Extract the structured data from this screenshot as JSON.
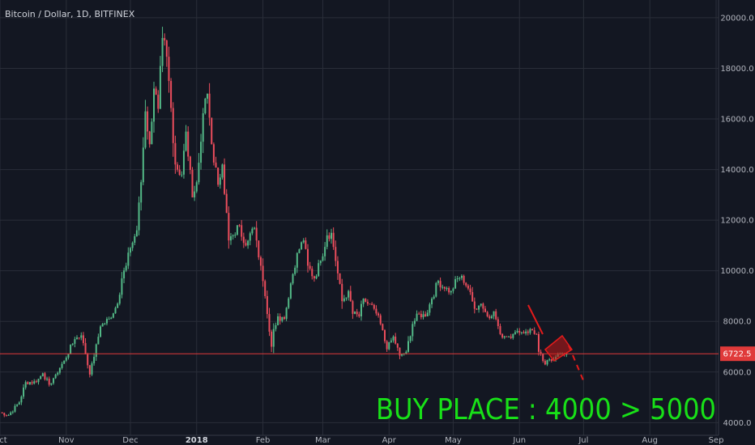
{
  "header": {
    "title": "Bitcoin / Dollar, 1D, BITFINEX"
  },
  "chart_data": {
    "type": "candlestick",
    "symbol": "Bitcoin / Dollar",
    "interval": "1D",
    "exchange": "BITFINEX",
    "ylim": [
      3500,
      20700
    ],
    "y_ticks": [
      "20000.0",
      "18000.0",
      "16000.0",
      "14000.0",
      "12000.0",
      "10000.0",
      "8000.0",
      "6000.0",
      "4000.0"
    ],
    "y_tick_values": [
      20000,
      18000,
      16000,
      14000,
      12000,
      10000,
      8000,
      6000,
      4000
    ],
    "x_ticks": [
      "Oct",
      "Nov",
      "Dec",
      "2018",
      "Feb",
      "Mar",
      "Apr",
      "May",
      "Jun",
      "Jul",
      "Aug",
      "Sep"
    ],
    "x_tick_dates": [
      "2017-10-01",
      "2017-11-01",
      "2017-12-01",
      "2018-01-01",
      "2018-02-01",
      "2018-03-01",
      "2018-04-01",
      "2018-05-01",
      "2018-06-01",
      "2018-07-01",
      "2018-08-01",
      "2018-09-01"
    ],
    "x_range": [
      "2017-10-01",
      "2018-09-01"
    ],
    "current_price": "6722.5",
    "current_price_value": 6722.5,
    "annotation": "BUY PLACE : 4000 > 5000",
    "colors": {
      "background": "#131722",
      "grid": "#2a2e39",
      "up": "#53b987",
      "down": "#eb4d5c",
      "price_line": "#e03a3a",
      "annotation": "#18e018",
      "drawing": "#e31b1b"
    },
    "grid": true,
    "close_anchors": [
      [
        "2017-10-01",
        4400
      ],
      [
        "2017-10-05",
        4300
      ],
      [
        "2017-10-10",
        4800
      ],
      [
        "2017-10-13",
        5600
      ],
      [
        "2017-10-18",
        5600
      ],
      [
        "2017-10-21",
        5950
      ],
      [
        "2017-10-24",
        5500
      ],
      [
        "2017-10-27",
        5900
      ],
      [
        "2017-10-31",
        6450
      ],
      [
        "2017-11-05",
        7300
      ],
      [
        "2017-11-08",
        7450
      ],
      [
        "2017-11-10",
        6700
      ],
      [
        "2017-11-12",
        5900
      ],
      [
        "2017-11-14",
        6600
      ],
      [
        "2017-11-17",
        7800
      ],
      [
        "2017-11-21",
        8100
      ],
      [
        "2017-11-25",
        8700
      ],
      [
        "2017-11-27",
        9700
      ],
      [
        "2017-11-29",
        10200
      ],
      [
        "2017-12-01",
        10900
      ],
      [
        "2017-12-04",
        11600
      ],
      [
        "2017-12-06",
        13500
      ],
      [
        "2017-12-08",
        16300
      ],
      [
        "2017-12-10",
        15000
      ],
      [
        "2017-12-12",
        17200
      ],
      [
        "2017-12-14",
        16400
      ],
      [
        "2017-12-16",
        19200
      ],
      [
        "2017-12-17",
        19100
      ],
      [
        "2017-12-19",
        17500
      ],
      [
        "2017-12-22",
        14200
      ],
      [
        "2017-12-25",
        13800
      ],
      [
        "2017-12-27",
        15500
      ],
      [
        "2017-12-30",
        12900
      ],
      [
        "2018-01-01",
        13500
      ],
      [
        "2018-01-03",
        15100
      ],
      [
        "2018-01-05",
        16800
      ],
      [
        "2018-01-06",
        17000
      ],
      [
        "2018-01-08",
        15000
      ],
      [
        "2018-01-11",
        13400
      ],
      [
        "2018-01-13",
        14200
      ],
      [
        "2018-01-16",
        11200
      ],
      [
        "2018-01-18",
        11400
      ],
      [
        "2018-01-21",
        11800
      ],
      [
        "2018-01-24",
        11000
      ],
      [
        "2018-01-28",
        11700
      ],
      [
        "2018-01-31",
        10200
      ],
      [
        "2018-02-02",
        9000
      ],
      [
        "2018-02-05",
        7000
      ],
      [
        "2018-02-06",
        7700
      ],
      [
        "2018-02-08",
        8200
      ],
      [
        "2018-02-11",
        8100
      ],
      [
        "2018-02-14",
        9500
      ],
      [
        "2018-02-17",
        10700
      ],
      [
        "2018-02-20",
        11200
      ],
      [
        "2018-02-22",
        10200
      ],
      [
        "2018-02-25",
        9700
      ],
      [
        "2018-02-28",
        10400
      ],
      [
        "2018-03-03",
        11400
      ],
      [
        "2018-03-05",
        11500
      ],
      [
        "2018-03-08",
        9900
      ],
      [
        "2018-03-10",
        8800
      ],
      [
        "2018-03-13",
        9200
      ],
      [
        "2018-03-15",
        8300
      ],
      [
        "2018-03-18",
        8200
      ],
      [
        "2018-03-20",
        8900
      ],
      [
        "2018-03-22",
        8700
      ],
      [
        "2018-03-25",
        8500
      ],
      [
        "2018-03-28",
        7900
      ],
      [
        "2018-03-31",
        6900
      ],
      [
        "2018-04-03",
        7400
      ],
      [
        "2018-04-06",
        6650
      ],
      [
        "2018-04-09",
        6800
      ],
      [
        "2018-04-12",
        7900
      ],
      [
        "2018-04-15",
        8300
      ],
      [
        "2018-04-18",
        8200
      ],
      [
        "2018-04-21",
        8900
      ],
      [
        "2018-04-24",
        9600
      ],
      [
        "2018-04-27",
        9300
      ],
      [
        "2018-04-30",
        9200
      ],
      [
        "2018-05-03",
        9700
      ],
      [
        "2018-05-05",
        9800
      ],
      [
        "2018-05-08",
        9300
      ],
      [
        "2018-05-11",
        8500
      ],
      [
        "2018-05-14",
        8700
      ],
      [
        "2018-05-17",
        8200
      ],
      [
        "2018-05-20",
        8400
      ],
      [
        "2018-05-23",
        7500
      ],
      [
        "2018-05-26",
        7400
      ],
      [
        "2018-05-29",
        7500
      ],
      [
        "2018-06-01",
        7550
      ],
      [
        "2018-06-04",
        7600
      ],
      [
        "2018-06-07",
        7650
      ],
      [
        "2018-06-09",
        7500
      ],
      [
        "2018-06-10",
        6800
      ],
      [
        "2018-06-13",
        6300
      ],
      [
        "2018-06-15",
        6500
      ],
      [
        "2018-06-18",
        6600
      ],
      [
        "2018-06-21",
        6750
      ],
      [
        "2018-06-23",
        6722.5
      ]
    ]
  }
}
